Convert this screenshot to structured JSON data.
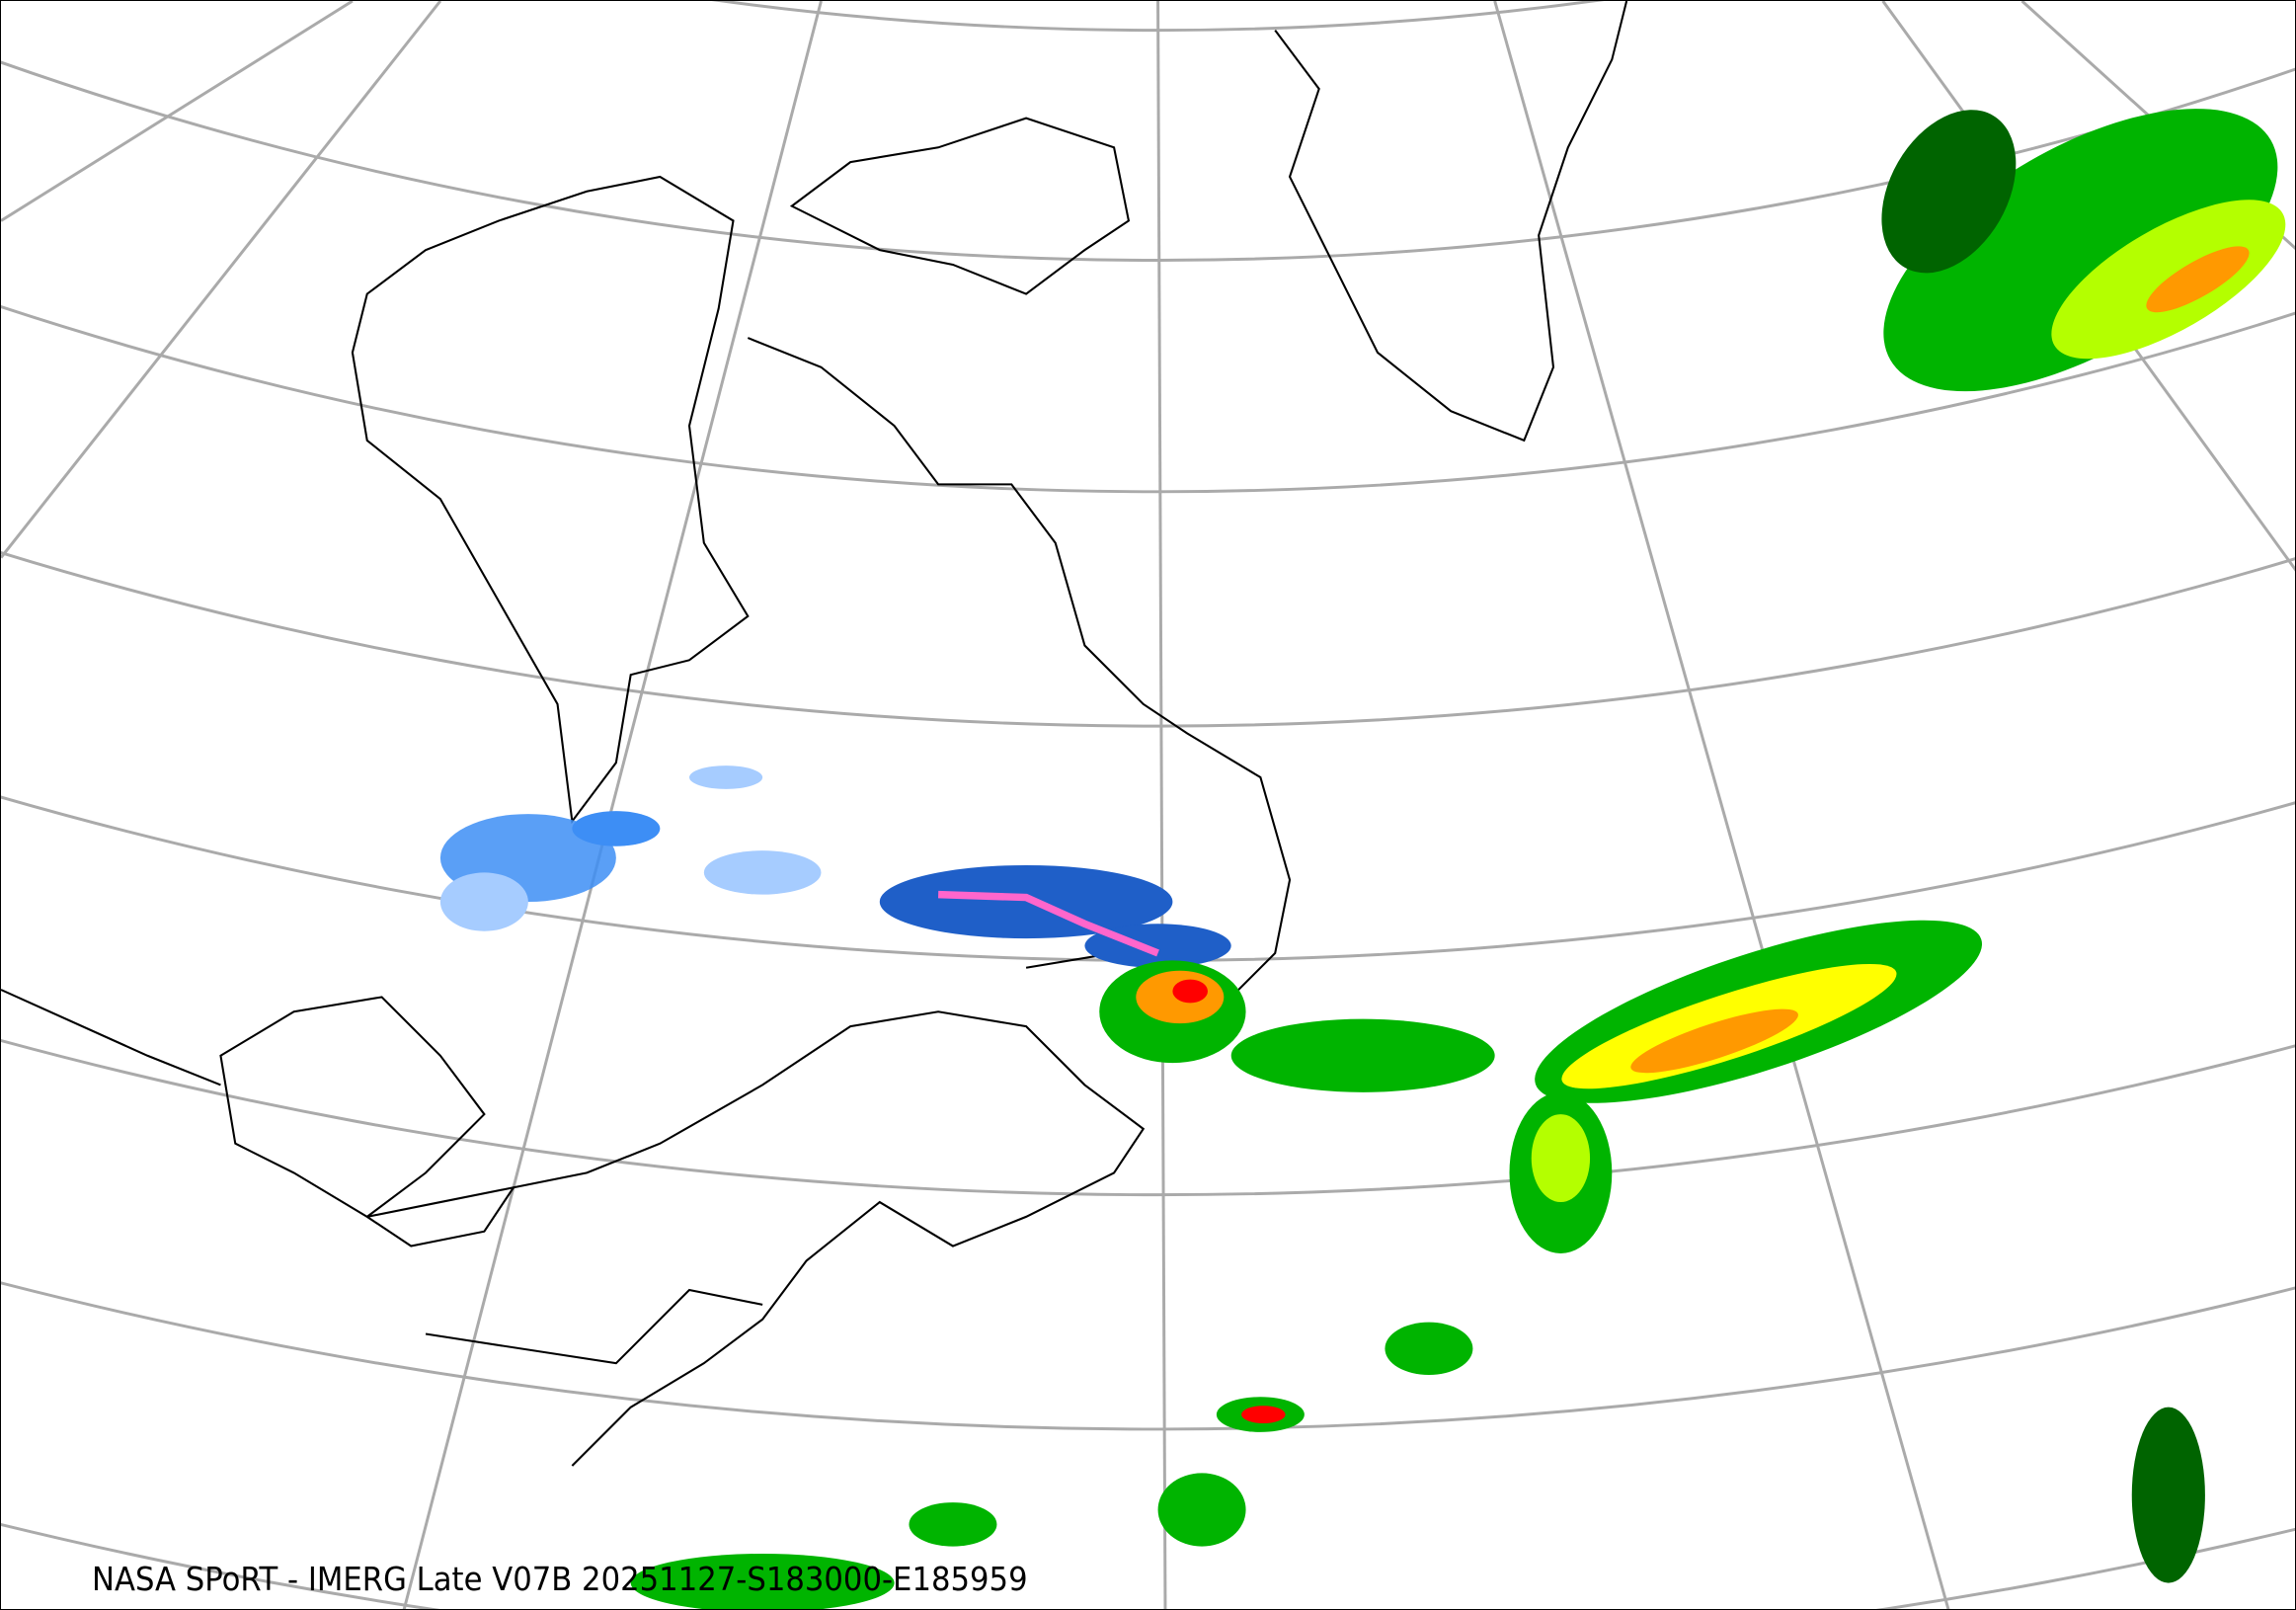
{
  "caption": "NASA SPoRT - IMERG Late V07B 20251127-S183000-E185959",
  "colors": {
    "graticule": "#aaaaaa",
    "coastline": "#000000",
    "snow_light": "#a6ccff",
    "snow_moderate": "#3d8ef5",
    "snow_heavy": "#1f5fc8",
    "snow_very_heavy": "#ff66cc",
    "rain_light_dark_green": "#006400",
    "rain_light": "#00b400",
    "rain_moderate": "#00ff00",
    "rain_yellow_green": "#b4ff00",
    "rain_yellow": "#ffff00",
    "rain_orange": "#ff9900",
    "rain_red": "#ff0000"
  }
}
